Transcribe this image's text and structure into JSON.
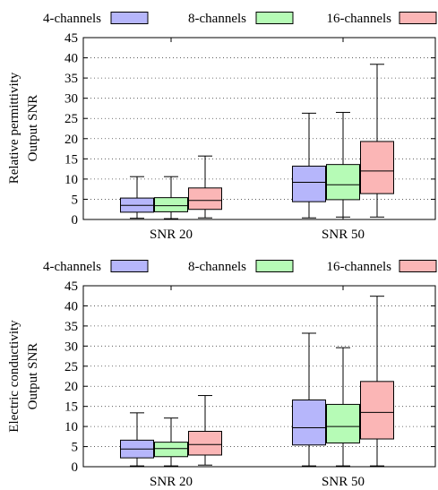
{
  "chart_data": [
    {
      "type": "box",
      "categories": [
        "SNR 20",
        "SNR 50"
      ],
      "ylabel_lines": [
        "Relative permittivity",
        "Output SNR"
      ],
      "ylim": [
        0,
        45
      ],
      "yticks": [
        0,
        5,
        10,
        15,
        20,
        25,
        30,
        35,
        40,
        45
      ],
      "grid": "horizontal dotted",
      "legend_position": "top",
      "series": [
        {
          "name": "4-channels",
          "color": "#b6b6fb",
          "boxes": [
            {
              "min": 0.3,
              "q1": 1.8,
              "median": 3.5,
              "q3": 5.3,
              "max": 10.6
            },
            {
              "min": 0.4,
              "q1": 4.4,
              "median": 9.2,
              "q3": 13.2,
              "max": 26.3
            }
          ]
        },
        {
          "name": "8-channels",
          "color": "#b6fbb6",
          "boxes": [
            {
              "min": 0.2,
              "q1": 1.9,
              "median": 3.4,
              "q3": 5.4,
              "max": 10.6
            },
            {
              "min": 0.6,
              "q1": 4.9,
              "median": 8.6,
              "q3": 13.6,
              "max": 26.5
            }
          ]
        },
        {
          "name": "16-channels",
          "color": "#fbb6b6",
          "boxes": [
            {
              "min": 0.4,
              "q1": 2.5,
              "median": 4.7,
              "q3": 7.8,
              "max": 15.7
            },
            {
              "min": 0.6,
              "q1": 6.4,
              "median": 12.0,
              "q3": 19.3,
              "max": 38.4
            }
          ]
        }
      ]
    },
    {
      "type": "box",
      "categories": [
        "SNR 20",
        "SNR 50"
      ],
      "ylabel_lines": [
        "Electric conductivity",
        "Output SNR"
      ],
      "ylim": [
        0,
        45
      ],
      "yticks": [
        0,
        5,
        10,
        15,
        20,
        25,
        30,
        35,
        40,
        45
      ],
      "grid": "horizontal dotted",
      "legend_position": "top",
      "series": [
        {
          "name": "4-channels",
          "color": "#b6b6fb",
          "boxes": [
            {
              "min": 0.2,
              "q1": 2.2,
              "median": 4.4,
              "q3": 6.6,
              "max": 13.4
            },
            {
              "min": 0.2,
              "q1": 5.4,
              "median": 9.7,
              "q3": 16.6,
              "max": 33.2
            }
          ]
        },
        {
          "name": "8-channels",
          "color": "#b6fbb6",
          "boxes": [
            {
              "min": 0.2,
              "q1": 2.5,
              "median": 4.5,
              "q3": 6.1,
              "max": 12.1
            },
            {
              "min": 0.2,
              "q1": 5.9,
              "median": 10.0,
              "q3": 15.5,
              "max": 29.6
            }
          ]
        },
        {
          "name": "16-channels",
          "color": "#fbb6b6",
          "boxes": [
            {
              "min": 0.4,
              "q1": 2.9,
              "median": 5.5,
              "q3": 8.8,
              "max": 17.7
            },
            {
              "min": 0.2,
              "q1": 6.9,
              "median": 13.5,
              "q3": 21.2,
              "max": 42.4
            }
          ]
        }
      ]
    }
  ]
}
